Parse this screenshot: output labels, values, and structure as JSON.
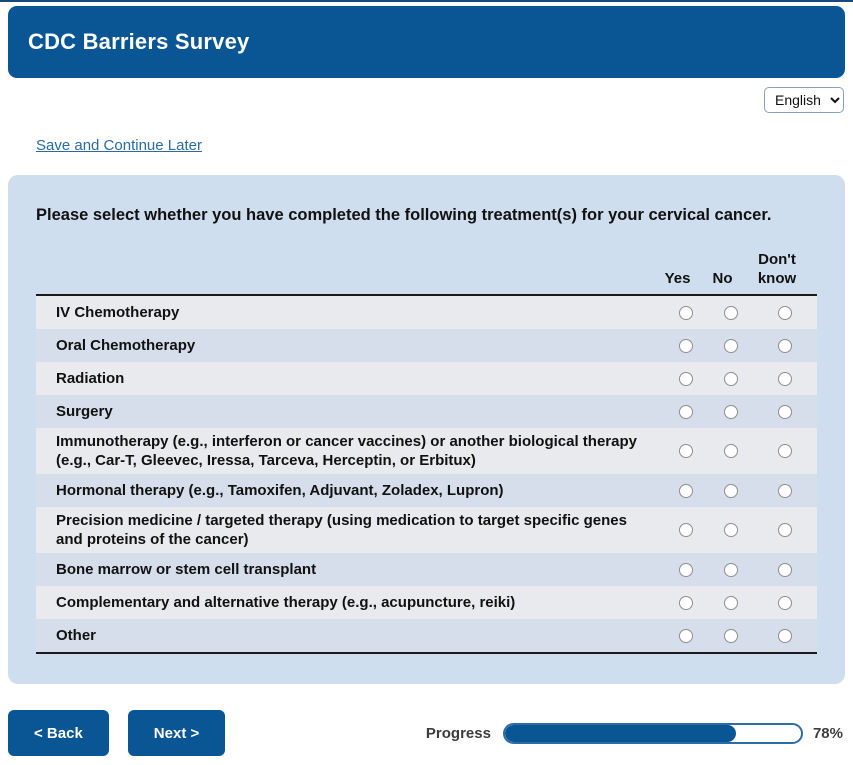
{
  "header": {
    "title": "CDC Barriers Survey"
  },
  "language_select": {
    "value": "English"
  },
  "links": {
    "save_continue": "Save and Continue Later"
  },
  "survey": {
    "question": "Please select whether you have completed the following treatment(s) for your cervical cancer.",
    "columns": [
      "Yes",
      "No",
      "Don't know"
    ],
    "rows": [
      {
        "label": "IV Chemotherapy"
      },
      {
        "label": "Oral Chemotherapy"
      },
      {
        "label": "Radiation"
      },
      {
        "label": "Surgery"
      },
      {
        "label": "Immunotherapy (e.g., interferon or cancer vaccines) or another biological therapy (e.g., Car-T, Gleevec, Iressa, Tarceva, Herceptin, or Erbitux)"
      },
      {
        "label": "Hormonal therapy (e.g., Tamoxifen, Adjuvant, Zoladex, Lupron)"
      },
      {
        "label": "Precision medicine / targeted therapy (using medication to target specific genes and proteins of the cancer)"
      },
      {
        "label": "Bone marrow or stem cell transplant"
      },
      {
        "label": "Complementary and alternative therapy (e.g., acupuncture, reiki)"
      },
      {
        "label": "Other"
      }
    ]
  },
  "footer": {
    "back_label": "< Back",
    "next_label": "Next >",
    "progress_label": "Progress",
    "progress_value": "78%",
    "progress_percent": 78
  },
  "colors": {
    "header_blue": "#0a5694",
    "panel_blue": "#cfdeee",
    "row_gray": "#e9eaee",
    "row_blue": "#d5deea",
    "link_blue": "#2a6ba5",
    "progress_border_blue": "#2e6ca8"
  }
}
